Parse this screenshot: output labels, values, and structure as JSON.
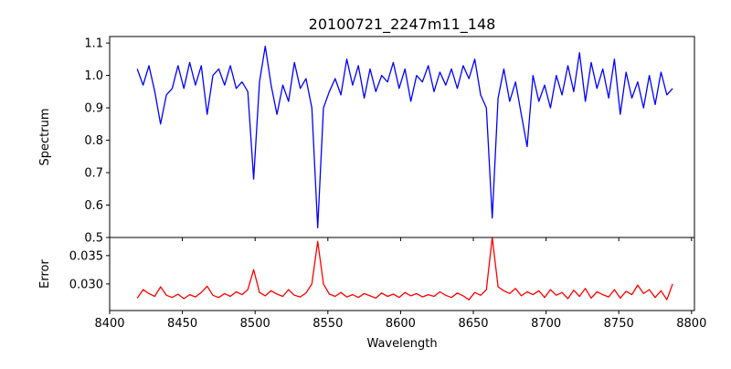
{
  "chart_data": [
    {
      "type": "line",
      "title": "20100721_2247m11_148",
      "xlabel": "",
      "ylabel": "Spectrum",
      "xlim": [
        8400,
        8802
      ],
      "ylim": [
        0.5,
        1.12
      ],
      "xticks": [
        8400,
        8450,
        8500,
        8550,
        8600,
        8650,
        8700,
        8750,
        8800
      ],
      "yticks": [
        0.5,
        0.6,
        0.7,
        0.8,
        0.9,
        1.0,
        1.1
      ],
      "ytick_labels": [
        "0.5",
        "0.6",
        "0.7",
        "0.8",
        "0.9",
        "1.0",
        "1.1"
      ],
      "color": "#0000ff",
      "x": [
        8419,
        8423,
        8427,
        8431,
        8435,
        8439,
        8443,
        8447,
        8451,
        8455,
        8459,
        8463,
        8467,
        8471,
        8475,
        8479,
        8483,
        8487,
        8491,
        8495,
        8499,
        8503,
        8507,
        8511,
        8515,
        8519,
        8523,
        8527,
        8531,
        8535,
        8539,
        8543,
        8547,
        8551,
        8555,
        8559,
        8563,
        8567,
        8571,
        8575,
        8579,
        8583,
        8587,
        8591,
        8595,
        8599,
        8603,
        8607,
        8611,
        8615,
        8619,
        8623,
        8627,
        8631,
        8635,
        8639,
        8643,
        8647,
        8651,
        8655,
        8659,
        8663,
        8667,
        8671,
        8675,
        8679,
        8683,
        8687,
        8691,
        8695,
        8699,
        8703,
        8707,
        8711,
        8715,
        8719,
        8723,
        8727,
        8731,
        8735,
        8739,
        8743,
        8747,
        8751,
        8755,
        8759,
        8763,
        8767,
        8771,
        8775,
        8779,
        8783,
        8787
      ],
      "y": [
        1.02,
        0.97,
        1.03,
        0.95,
        0.85,
        0.94,
        0.96,
        1.03,
        0.96,
        1.04,
        0.97,
        1.03,
        0.88,
        1.0,
        1.02,
        0.97,
        1.03,
        0.96,
        0.98,
        0.95,
        0.68,
        0.98,
        1.09,
        0.97,
        0.88,
        0.97,
        0.92,
        1.04,
        0.96,
        0.99,
        0.9,
        0.53,
        0.9,
        0.95,
        0.99,
        0.94,
        1.05,
        0.97,
        1.03,
        0.93,
        1.02,
        0.95,
        1.0,
        0.98,
        1.04,
        0.96,
        1.02,
        0.92,
        1.0,
        0.98,
        1.03,
        0.95,
        1.01,
        0.97,
        1.02,
        0.96,
        1.03,
        0.99,
        1.05,
        0.94,
        0.9,
        0.56,
        0.93,
        1.02,
        0.92,
        0.98,
        0.88,
        0.78,
        1.0,
        0.92,
        0.97,
        0.9,
        1.0,
        0.94,
        1.03,
        0.95,
        1.07,
        0.92,
        1.04,
        0.96,
        1.02,
        0.93,
        1.05,
        0.88,
        1.01,
        0.93,
        0.98,
        0.9,
        1.0,
        0.91,
        1.01,
        0.94,
        0.96
      ]
    },
    {
      "type": "line",
      "title": "",
      "xlabel": "Wavelength",
      "ylabel": "Error",
      "xlim": [
        8400,
        8802
      ],
      "ylim": [
        0.0253,
        0.0382
      ],
      "xticks": [
        8400,
        8450,
        8500,
        8550,
        8600,
        8650,
        8700,
        8750,
        8800
      ],
      "xtick_labels": [
        "8400",
        "8450",
        "8500",
        "8550",
        "8600",
        "8650",
        "8700",
        "8750",
        "8800"
      ],
      "yticks": [
        0.03,
        0.035
      ],
      "ytick_labels": [
        "0.030",
        "0.035"
      ],
      "color": "#ff0000",
      "x": [
        8419,
        8423,
        8427,
        8431,
        8435,
        8439,
        8443,
        8447,
        8451,
        8455,
        8459,
        8463,
        8467,
        8471,
        8475,
        8479,
        8483,
        8487,
        8491,
        8495,
        8499,
        8503,
        8507,
        8511,
        8515,
        8519,
        8523,
        8527,
        8531,
        8535,
        8539,
        8543,
        8547,
        8551,
        8555,
        8559,
        8563,
        8567,
        8571,
        8575,
        8579,
        8583,
        8587,
        8591,
        8595,
        8599,
        8603,
        8607,
        8611,
        8615,
        8619,
        8623,
        8627,
        8631,
        8635,
        8639,
        8643,
        8647,
        8651,
        8655,
        8659,
        8663,
        8667,
        8671,
        8675,
        8679,
        8683,
        8687,
        8691,
        8695,
        8699,
        8703,
        8707,
        8711,
        8715,
        8719,
        8723,
        8727,
        8731,
        8735,
        8739,
        8743,
        8747,
        8751,
        8755,
        8759,
        8763,
        8767,
        8771,
        8775,
        8779,
        8783,
        8787
      ],
      "y": [
        0.0275,
        0.029,
        0.0283,
        0.0278,
        0.0295,
        0.028,
        0.0276,
        0.0282,
        0.0274,
        0.0281,
        0.0277,
        0.0285,
        0.0296,
        0.028,
        0.0276,
        0.0283,
        0.0278,
        0.0286,
        0.0281,
        0.029,
        0.0325,
        0.0285,
        0.0279,
        0.0288,
        0.0282,
        0.0278,
        0.029,
        0.028,
        0.0277,
        0.0284,
        0.03,
        0.0375,
        0.03,
        0.0282,
        0.0278,
        0.0285,
        0.0277,
        0.0281,
        0.0276,
        0.0283,
        0.0279,
        0.0275,
        0.0284,
        0.0278,
        0.0282,
        0.0276,
        0.0285,
        0.0279,
        0.0283,
        0.0277,
        0.0281,
        0.0278,
        0.0286,
        0.028,
        0.0276,
        0.0284,
        0.0279,
        0.0272,
        0.0285,
        0.028,
        0.029,
        0.0385,
        0.0295,
        0.0288,
        0.0283,
        0.0292,
        0.0279,
        0.0286,
        0.0281,
        0.0288,
        0.0276,
        0.029,
        0.028,
        0.0285,
        0.0274,
        0.0289,
        0.0278,
        0.0292,
        0.0275,
        0.0286,
        0.0281,
        0.0277,
        0.029,
        0.0275,
        0.0287,
        0.0281,
        0.0298,
        0.0283,
        0.029,
        0.0276,
        0.0288,
        0.0272,
        0.03
      ]
    }
  ]
}
